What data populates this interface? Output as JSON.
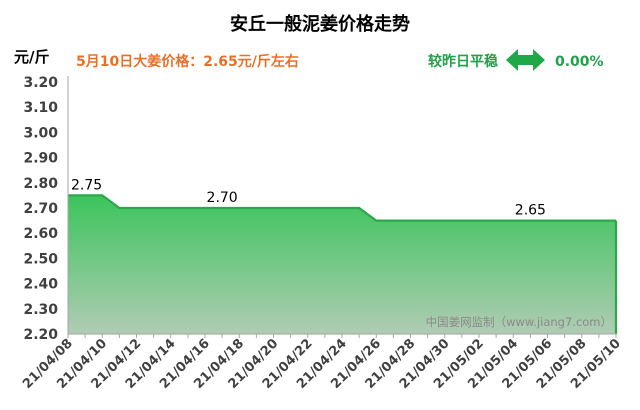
{
  "chart_data": {
    "type": "area",
    "title": "安丘一般泥姜价格走势",
    "unit_label": "元/斤",
    "price_note": "5月10日大姜价格：2.65元/斤左右",
    "compare_label": "较昨日平稳",
    "change_value": "0.00%",
    "watermark": "中国姜网监制（www.jiang7.com）",
    "ylim": [
      2.2,
      3.2
    ],
    "yticks": [
      "3.20",
      "3.10",
      "3.00",
      "2.90",
      "2.80",
      "2.70",
      "2.60",
      "2.50",
      "2.40",
      "2.30",
      "2.20"
    ],
    "x": [
      "21/04/08",
      "21/04/09",
      "21/04/10",
      "21/04/11",
      "21/04/12",
      "21/04/13",
      "21/04/14",
      "21/04/15",
      "21/04/16",
      "21/04/17",
      "21/04/18",
      "21/04/19",
      "21/04/20",
      "21/04/21",
      "21/04/22",
      "21/04/23",
      "21/04/24",
      "21/04/25",
      "21/04/26",
      "21/04/27",
      "21/04/28",
      "21/04/29",
      "21/04/30",
      "21/05/01",
      "21/05/02",
      "21/05/03",
      "21/05/04",
      "21/05/05",
      "21/05/06",
      "21/05/07",
      "21/05/08",
      "21/05/09",
      "21/05/10"
    ],
    "values": [
      2.75,
      2.75,
      2.75,
      2.7,
      2.7,
      2.7,
      2.7,
      2.7,
      2.7,
      2.7,
      2.7,
      2.7,
      2.7,
      2.7,
      2.7,
      2.7,
      2.7,
      2.7,
      2.65,
      2.65,
      2.65,
      2.65,
      2.65,
      2.65,
      2.65,
      2.65,
      2.65,
      2.65,
      2.65,
      2.65,
      2.65,
      2.65,
      2.65
    ],
    "xtick_labels": [
      "21/04/08",
      "21/04/10",
      "21/04/12",
      "21/04/14",
      "21/04/16",
      "21/04/18",
      "21/04/20",
      "21/04/22",
      "21/04/24",
      "21/04/26",
      "21/04/28",
      "21/04/30",
      "21/05/02",
      "21/05/04",
      "21/05/06",
      "21/05/08",
      "21/05/10"
    ],
    "data_labels": [
      {
        "index": 0,
        "text": "2.75"
      },
      {
        "index": 9,
        "text": "2.70"
      },
      {
        "index": 27,
        "text": "2.65"
      }
    ],
    "grid": false,
    "colors": {
      "line": "#2aa84a",
      "fill_top": "#3cc45c",
      "fill_bottom": "#b0ccb4",
      "title": "#000000",
      "accent": "#e8712a",
      "compare": "#23a04a",
      "arrow": "#1fa848",
      "watermark": "#8a8a8a"
    }
  }
}
